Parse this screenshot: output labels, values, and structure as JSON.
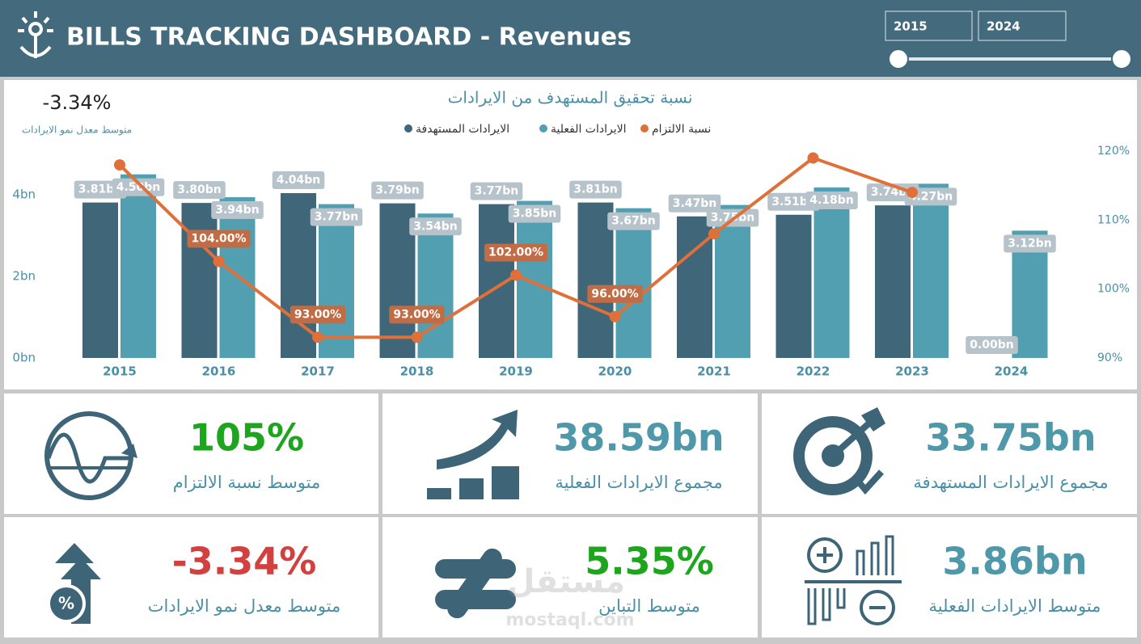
{
  "header": {
    "title": "BILLS TRACKING DASHBOARD - Revenues",
    "range_from": "2015",
    "range_to": "2024"
  },
  "summary": {
    "value": "-3.34%",
    "label": "متوسط معدل نمو الايرادات"
  },
  "chart_data": {
    "type": "bar",
    "title": "نسبة تحقيق المستهدف من الايرادات",
    "categories": [
      "2015",
      "2016",
      "2017",
      "2018",
      "2019",
      "2020",
      "2021",
      "2022",
      "2023",
      "2024"
    ],
    "series": [
      {
        "name": "الايرادات المستهدفة",
        "color": "#3f6679",
        "values": [
          3.81,
          3.8,
          4.04,
          3.79,
          3.77,
          3.81,
          3.47,
          3.51,
          3.74,
          0.0
        ],
        "value_labels": [
          "3.81bn",
          "3.80bn",
          "4.04bn",
          "3.79bn",
          "3.77bn",
          "3.81bn",
          "3.47bn",
          "3.51bn",
          "3.74bn",
          "0.00bn"
        ]
      },
      {
        "name": "الايرادات الفعلية",
        "color": "#519fb0",
        "values": [
          4.5,
          3.94,
          3.77,
          3.54,
          3.85,
          3.67,
          3.75,
          4.18,
          4.27,
          3.12
        ],
        "value_labels": [
          "4.50bn",
          "3.94bn",
          "3.77bn",
          "3.54bn",
          "3.85bn",
          "3.67bn",
          "3.75bn",
          "4.18bn",
          "4.27bn",
          "3.12bn"
        ]
      },
      {
        "name": "نسبة الالتزام",
        "color": "#e0703a",
        "type": "line",
        "axis": "y2",
        "values": [
          118,
          104,
          93,
          93,
          102,
          96,
          108,
          119,
          114,
          null
        ],
        "value_labels": [
          null,
          "104.00%",
          "93.00%",
          "93.00%",
          "102.00%",
          "96.00%",
          null,
          null,
          null,
          null
        ]
      }
    ],
    "ylim": [
      0,
      5.07
    ],
    "yticks": [
      {
        "value": 0,
        "label": "0bn"
      },
      {
        "value": 2,
        "label": "2bn"
      },
      {
        "value": 4,
        "label": "4bn"
      }
    ],
    "y2lim": [
      90,
      120
    ],
    "y2ticks": [
      {
        "value": 90,
        "label": "90%"
      },
      {
        "value": 100,
        "label": "100%"
      },
      {
        "value": 110,
        "label": "110%"
      },
      {
        "value": 120,
        "label": "120%"
      }
    ]
  },
  "cards": [
    {
      "value": "105%",
      "label": "متوسط نسبة الالتزام",
      "color": "#1ea51e"
    },
    {
      "value": "38.59bn",
      "label": "مجموع الايرادات الفعلية",
      "color": "#4f98aa"
    },
    {
      "value": "33.75bn",
      "label": "مجموع الايرادات المستهدفة",
      "color": "#4f98aa"
    },
    {
      "value": "-3.34%",
      "label": "متوسط معدل نمو الايرادات",
      "color": "#d2413f"
    },
    {
      "value": "5.35%",
      "label": "متوسط التباين",
      "color": "#1ea51e"
    },
    {
      "value": "3.86bn",
      "label": "متوسط الايرادات الفعلية",
      "color": "#4f98aa"
    }
  ],
  "watermark": [
    "مستقل",
    "mostaql.com"
  ]
}
